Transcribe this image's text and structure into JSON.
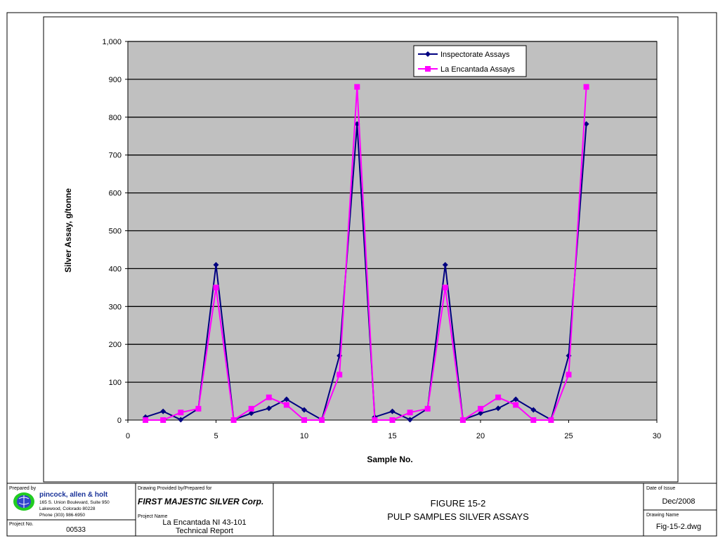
{
  "chart_data": {
    "type": "line",
    "xlabel": "Sample No.",
    "ylabel": "Silver Assay, g/tonne",
    "xlim": [
      0,
      30
    ],
    "ylim": [
      0,
      1000
    ],
    "x_ticks": [
      "0",
      "5",
      "10",
      "15",
      "20",
      "25",
      "30"
    ],
    "y_ticks": [
      "0",
      "100",
      "200",
      "300",
      "400",
      "500",
      "600",
      "700",
      "800",
      "900",
      "1,000"
    ],
    "grid": "horizontal",
    "legend_position": "top-right",
    "series": [
      {
        "name": "Inspectorate Assays",
        "color": "#000080",
        "marker": "diamond",
        "x": [
          1,
          2,
          3,
          4,
          5,
          6,
          7,
          8,
          9,
          10,
          11,
          12,
          13,
          14,
          15,
          16,
          17,
          18,
          19,
          20,
          21,
          22,
          23,
          24,
          25,
          26
        ],
        "values": [
          8,
          23,
          1,
          30,
          410,
          1,
          18,
          31,
          55,
          27,
          1,
          170,
          782,
          8,
          23,
          1,
          30,
          410,
          1,
          18,
          31,
          55,
          27,
          1,
          170,
          782
        ]
      },
      {
        "name": "La Encantada Assays",
        "color": "#FF00FF",
        "marker": "square",
        "x": [
          1,
          2,
          3,
          4,
          5,
          6,
          7,
          8,
          9,
          10,
          11,
          12,
          13,
          14,
          15,
          16,
          17,
          18,
          19,
          20,
          21,
          22,
          23,
          24,
          25,
          26
        ],
        "values": [
          0,
          0,
          20,
          30,
          350,
          0,
          30,
          60,
          40,
          0,
          0,
          120,
          880,
          0,
          0,
          20,
          30,
          350,
          0,
          30,
          60,
          40,
          0,
          0,
          120,
          880
        ]
      }
    ]
  },
  "title_block": {
    "prepared_by_label": "Prepared by",
    "company_name": "pincock, allen & holt",
    "address_line1": "165 S. Union Boulevard, Suite 950",
    "address_line2": "Lakewood, Colorado 80228",
    "address_line3": "Phone (303) 986-6950",
    "project_no_label": "Project No.",
    "project_no": "00533",
    "drawing_provided_label": "Drawing Provided by/Prepared for",
    "client": "FIRST MAJESTIC SILVER Corp.",
    "project_name_label": "Project Name",
    "project_name_line1": "La Encantada NI 43-101",
    "project_name_line2": "Technical Report",
    "figure_number": "FIGURE 15-2",
    "figure_title": "PULP SAMPLES SILVER ASSAYS",
    "date_label": "Date of Issue",
    "date": "Dec/2008",
    "drawing_name_label": "Drawing Name",
    "drawing_name": "Fig-15-2.dwg"
  }
}
